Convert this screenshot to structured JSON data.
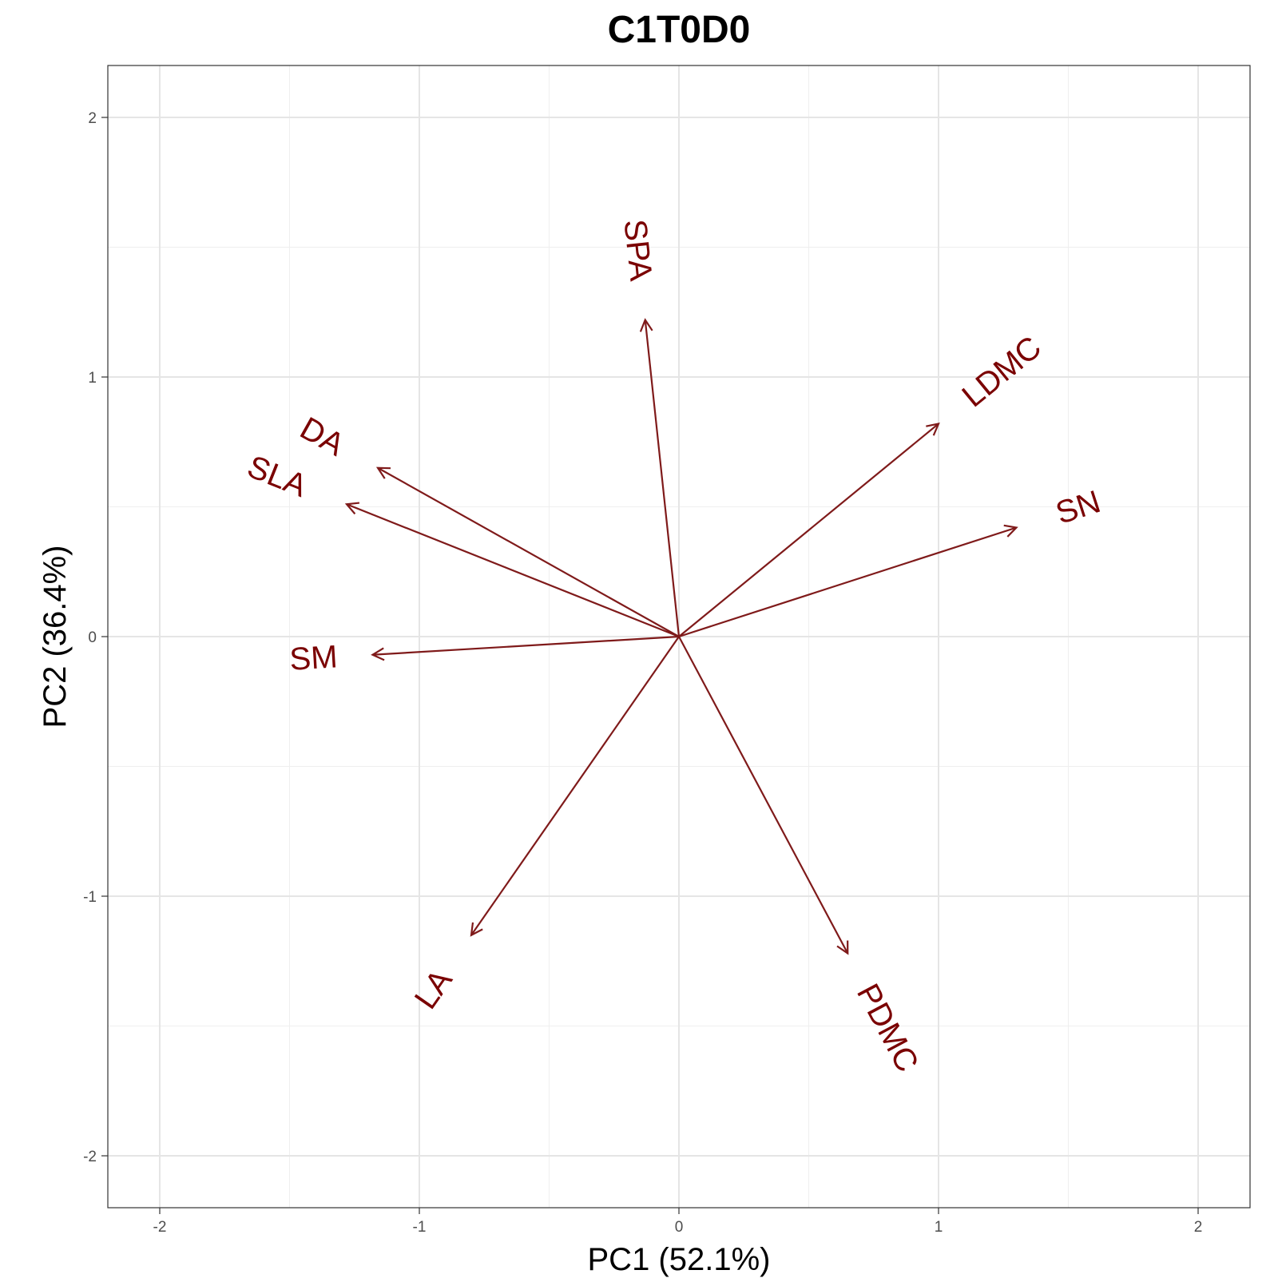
{
  "chart_data": {
    "type": "scatter",
    "subtype": "pca-loadings-biplot",
    "title": "C1T0D0",
    "xlabel": "PC1 (52.1%)",
    "ylabel": "PC2 (36.4%)",
    "xlim": [
      -2.2,
      2.2
    ],
    "ylim": [
      -2.2,
      2.2
    ],
    "x_ticks": [
      -2,
      -1,
      0,
      1,
      2
    ],
    "y_ticks": [
      -2,
      -1,
      0,
      1,
      2
    ],
    "x_tick_labels": [
      "-2",
      "-1",
      "0",
      "1",
      "2"
    ],
    "y_tick_labels": [
      "-2",
      "-1",
      "0",
      "1",
      "2"
    ],
    "grid": true,
    "arrow_color": "#7f1a1a",
    "label_color": "#7a0000",
    "vectors": [
      {
        "name": "SPA",
        "x": -0.13,
        "y": 1.22
      },
      {
        "name": "LDMC",
        "x": 1.0,
        "y": 0.82
      },
      {
        "name": "SN",
        "x": 1.3,
        "y": 0.42
      },
      {
        "name": "DA",
        "x": -1.16,
        "y": 0.65
      },
      {
        "name": "SLA",
        "x": -1.28,
        "y": 0.51
      },
      {
        "name": "SM",
        "x": -1.18,
        "y": -0.07
      },
      {
        "name": "LA",
        "x": -0.8,
        "y": -1.15
      },
      {
        "name": "PDMC",
        "x": 0.65,
        "y": -1.22
      }
    ]
  }
}
